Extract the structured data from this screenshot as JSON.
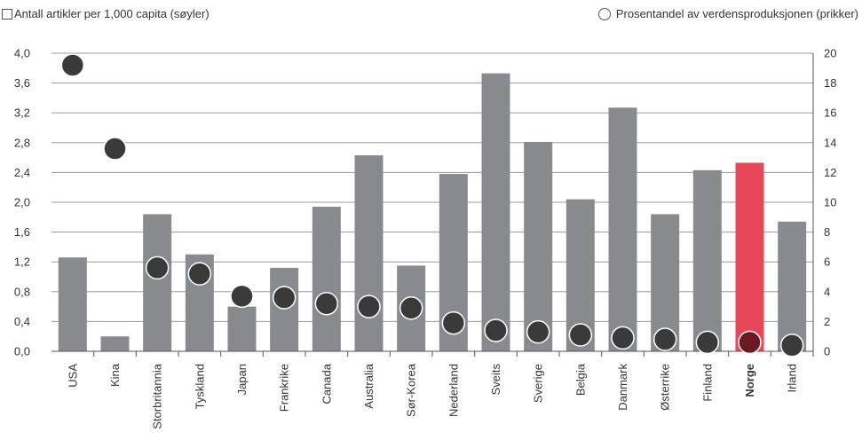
{
  "legend": {
    "bars_label": "Antall artikler per 1,000 capita (søyler)",
    "dots_label": "Prosentandel av verdensproduksjonen (prikker)"
  },
  "colors": {
    "bar": "#878b8f",
    "highlight_bar": "#e8475a",
    "dot": "#3a3a3a",
    "highlight_dot": "#6b1a1f",
    "grid": "#9a9a9a"
  },
  "chart_data": {
    "type": "bar",
    "categories": [
      "USA",
      "Kina",
      "Storbritannia",
      "Tyskland",
      "Japan",
      "Frankrike",
      "Canada",
      "Australia",
      "Sør-Korea",
      "Nederland",
      "Sveits",
      "Sverige",
      "Belgia",
      "Danmark",
      "Østerrike",
      "Finland",
      "Norge",
      "Irland"
    ],
    "highlight_category": "Norge",
    "series": [
      {
        "name": "Antall artikler per 1,000 capita (søyler)",
        "type": "bar",
        "axis": "left",
        "values": [
          1.26,
          0.2,
          1.84,
          1.3,
          0.6,
          1.12,
          1.94,
          2.63,
          1.15,
          2.38,
          3.73,
          2.81,
          2.04,
          3.27,
          1.84,
          2.43,
          2.53,
          1.74
        ]
      },
      {
        "name": "Prosentandel av verdensproduksjonen (prikker)",
        "type": "scatter",
        "axis": "right",
        "values": [
          19.2,
          13.6,
          5.6,
          5.2,
          3.7,
          3.6,
          3.2,
          3.0,
          2.9,
          1.9,
          1.4,
          1.3,
          1.1,
          0.9,
          0.8,
          0.6,
          0.6,
          0.4
        ]
      }
    ],
    "y_left": {
      "ylim": [
        0,
        4.0
      ],
      "ticks": [
        "0,0",
        "0,4",
        "0,8",
        "1,2",
        "1,6",
        "2,0",
        "2,4",
        "2,8",
        "3,2",
        "3,6",
        "4,0"
      ]
    },
    "y_right": {
      "ylim": [
        0,
        20
      ],
      "ticks": [
        "0",
        "2",
        "4",
        "6",
        "8",
        "10",
        "12",
        "14",
        "16",
        "18",
        "20"
      ]
    },
    "grid": true,
    "legend_position": "top"
  }
}
